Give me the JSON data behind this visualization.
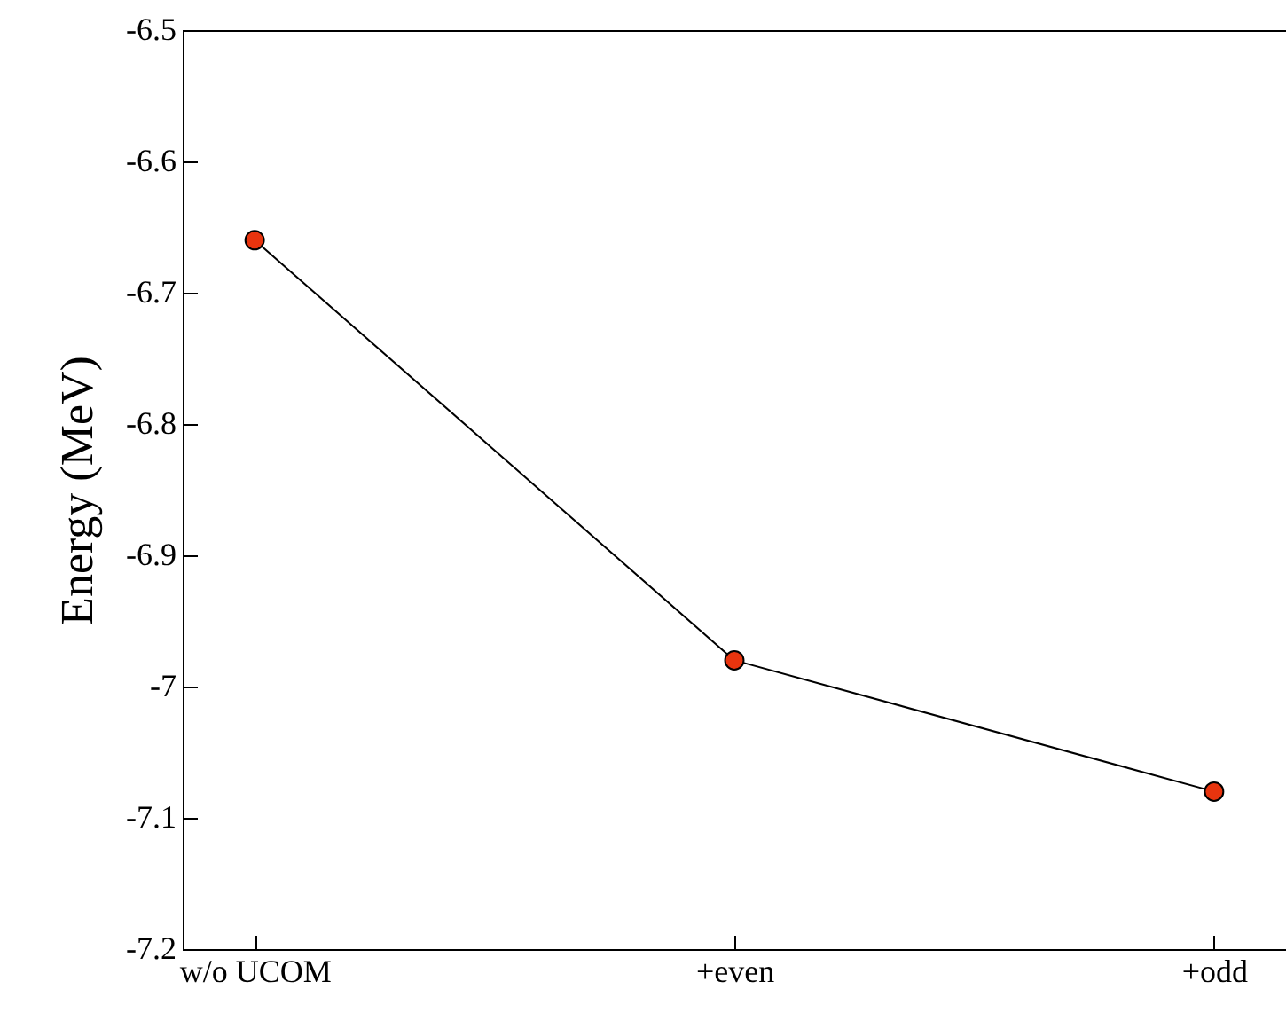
{
  "chart_data": {
    "type": "line",
    "ylabel": "Energy (MeV)",
    "categories": [
      "w/o UCOM",
      "+even",
      "+odd"
    ],
    "series": [
      {
        "color": "#e8340e",
        "values": [
          -6.66,
          -6.98,
          -7.08
        ]
      }
    ],
    "ylim": [
      -7.2,
      -6.5
    ],
    "yticks": [
      -7.2,
      -7.1,
      -7,
      -6.9,
      -6.8,
      -6.7,
      -6.6,
      -6.5
    ],
    "grid": false,
    "marker": "circle",
    "line_style": "solid"
  }
}
